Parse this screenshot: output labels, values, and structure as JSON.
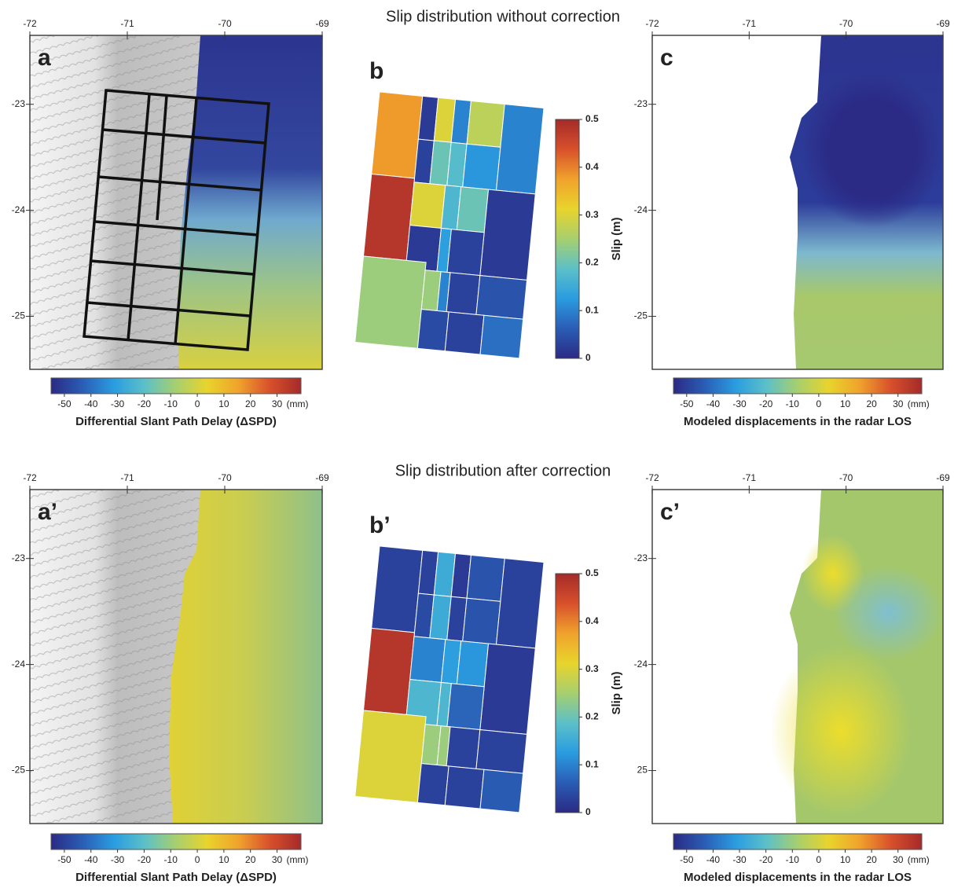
{
  "figure": {
    "colormap": [
      "#2b2a84",
      "#2a5db5",
      "#2a9ce0",
      "#5cc0c8",
      "#a7cf6e",
      "#e8d42c",
      "#f0a22c",
      "#d8502b",
      "#a52a2a"
    ],
    "rows": [
      {
        "title": "Slip distribution without correction",
        "map_a": {
          "letter": "a",
          "lonlim": [
            -72,
            -69
          ],
          "latlim": [
            -25.5,
            -22.35
          ],
          "lonticks": [
            -72,
            -71,
            -70,
            -69
          ],
          "latticks": [
            -23,
            -24,
            -25
          ],
          "colorbar": {
            "lim": [
              -55,
              39
            ],
            "ticks": [
              -50,
              -40,
              -30,
              -20,
              -10,
              0,
              10,
              20,
              30
            ],
            "unit": "(mm)",
            "caption": "Differential Slant Path Delay (ΔSPD)"
          }
        },
        "slip": {
          "letter": "b",
          "values": [
            0.38,
            0.02,
            0.03,
            0.3,
            0.2,
            0.1,
            0.18,
            0.27,
            0.12,
            0.1,
            0.48,
            0.3,
            0.17,
            0.2,
            0.02,
            0.02,
            0.13,
            0.03,
            0.24,
            0.24,
            0.1,
            0.03,
            0.05,
            0.04,
            0.03,
            0.08
          ],
          "colorbar": {
            "lim": [
              0,
              0.5
            ],
            "ticks": [
              0,
              0.1,
              0.2,
              0.3,
              0.4,
              0.5
            ],
            "label": "Slip (m)"
          }
        },
        "map_c": {
          "letter": "c",
          "lonlim": [
            -72,
            -69
          ],
          "latlim": [
            -25.5,
            -22.35
          ],
          "lonticks": [
            -72,
            -71,
            -70,
            -69
          ],
          "latticks": [
            -23,
            -24,
            -25
          ],
          "colorbar": {
            "lim": [
              -55,
              39
            ],
            "ticks": [
              -50,
              -40,
              -30,
              -20,
              -10,
              0,
              10,
              20,
              30
            ],
            "unit": "(mm)",
            "caption": "Modeled displacements in the radar LOS"
          }
        }
      },
      {
        "title": "Slip distribution after  correction",
        "map_a": {
          "letter": "a’",
          "lonlim": [
            -72,
            -69
          ],
          "latlim": [
            -25.5,
            -22.35
          ],
          "lonticks": [
            -72,
            -71,
            -70,
            -69
          ],
          "latticks": [
            -23,
            -24,
            -25
          ],
          "colorbar": {
            "lim": [
              -55,
              39
            ],
            "ticks": [
              -50,
              -40,
              -30,
              -20,
              -10,
              0,
              10,
              20,
              30
            ],
            "unit": "(mm)",
            "caption": "Differential Slant Path Delay (ΔSPD)"
          }
        },
        "slip": {
          "letter": "b’",
          "values": [
            0.03,
            0.03,
            0.04,
            0.15,
            0.15,
            0.02,
            0.03,
            0.05,
            0.05,
            0.03,
            0.48,
            0.1,
            0.13,
            0.12,
            0.02,
            0.17,
            0.17,
            0.07,
            0.3,
            0.24,
            0.24,
            0.03,
            0.03,
            0.03,
            0.03,
            0.06
          ],
          "colorbar": {
            "lim": [
              0,
              0.5
            ],
            "ticks": [
              0,
              0.1,
              0.2,
              0.3,
              0.4,
              0.5
            ],
            "label": "Slip (m)"
          }
        },
        "map_c": {
          "letter": "c’",
          "lonlim": [
            -72,
            -69
          ],
          "latlim": [
            -25.5,
            -22.35
          ],
          "lonticks": [
            -72,
            -71,
            -70,
            -69
          ],
          "latticks": [
            -23,
            -24,
            {
              "value": -25,
              "label": "25"
            }
          ],
          "colorbar": {
            "lim": [
              -55,
              39
            ],
            "ticks": [
              -50,
              -40,
              -30,
              -20,
              -10,
              0,
              10,
              20,
              30
            ],
            "unit": "(mm)",
            "caption": "Modeled displacements in the radar LOS"
          }
        }
      }
    ]
  }
}
